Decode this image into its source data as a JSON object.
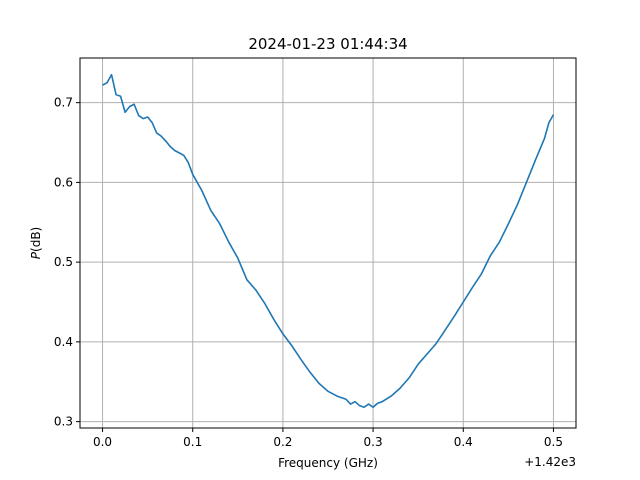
{
  "chart_data": {
    "type": "line",
    "title": "2024-01-23 01:44:34",
    "xlabel": "Frequency (GHz)",
    "ylabel_italic": "P",
    "ylabel_rest": "(dB)",
    "x_offset_label": "+1.42e3",
    "xlim": [
      -0.025,
      0.525
    ],
    "ylim": [
      0.292,
      0.756
    ],
    "x_ticks": [
      0.0,
      0.1,
      0.2,
      0.3,
      0.4,
      0.5
    ],
    "x_tick_labels": [
      "0.0",
      "0.1",
      "0.2",
      "0.3",
      "0.4",
      "0.5"
    ],
    "y_ticks": [
      0.3,
      0.4,
      0.5,
      0.6,
      0.7
    ],
    "y_tick_labels": [
      "0.3",
      "0.4",
      "0.5",
      "0.6",
      "0.7"
    ],
    "grid": true,
    "line_color": "#1f77b4",
    "series": [
      {
        "x": [
          0.0,
          0.005,
          0.01,
          0.015,
          0.02,
          0.025,
          0.03,
          0.035,
          0.04,
          0.045,
          0.05,
          0.055,
          0.06,
          0.065,
          0.07,
          0.075,
          0.08,
          0.085,
          0.09,
          0.095,
          0.1,
          0.11,
          0.12,
          0.13,
          0.14,
          0.15,
          0.16,
          0.17,
          0.18,
          0.19,
          0.2,
          0.21,
          0.22,
          0.23,
          0.24,
          0.25,
          0.26,
          0.27,
          0.275,
          0.28,
          0.285,
          0.29,
          0.295,
          0.3,
          0.305,
          0.31,
          0.32,
          0.33,
          0.34,
          0.35,
          0.36,
          0.37,
          0.38,
          0.39,
          0.4,
          0.41,
          0.42,
          0.43,
          0.44,
          0.45,
          0.46,
          0.47,
          0.48,
          0.49,
          0.495,
          0.5
        ],
        "y": [
          0.722,
          0.725,
          0.735,
          0.71,
          0.708,
          0.688,
          0.695,
          0.698,
          0.684,
          0.68,
          0.682,
          0.675,
          0.662,
          0.658,
          0.652,
          0.645,
          0.64,
          0.637,
          0.634,
          0.625,
          0.61,
          0.59,
          0.565,
          0.548,
          0.525,
          0.505,
          0.478,
          0.465,
          0.448,
          0.428,
          0.41,
          0.395,
          0.378,
          0.362,
          0.348,
          0.338,
          0.332,
          0.328,
          0.322,
          0.325,
          0.32,
          0.318,
          0.322,
          0.318,
          0.323,
          0.325,
          0.332,
          0.342,
          0.355,
          0.372,
          0.385,
          0.398,
          0.415,
          0.432,
          0.45,
          0.468,
          0.485,
          0.508,
          0.525,
          0.548,
          0.572,
          0.6,
          0.628,
          0.655,
          0.675,
          0.685
        ]
      }
    ]
  }
}
